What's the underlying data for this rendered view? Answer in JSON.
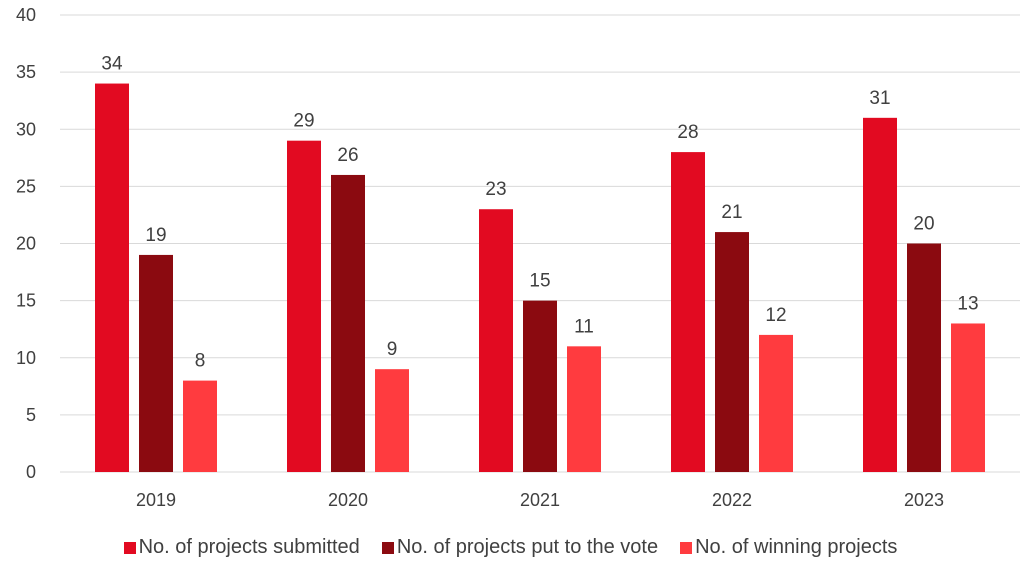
{
  "chart_data": {
    "type": "bar",
    "title": "",
    "xlabel": "",
    "ylabel": "",
    "categories": [
      "2019",
      "2020",
      "2021",
      "2022",
      "2023"
    ],
    "series": [
      {
        "name": "No. of projects submitted",
        "values": [
          34,
          29,
          23,
          28,
          31
        ],
        "color": "#e20a21"
      },
      {
        "name": "No. of projects put to the vote",
        "values": [
          19,
          26,
          15,
          21,
          20
        ],
        "color": "#8b0a10"
      },
      {
        "name": "No. of winning projects",
        "values": [
          8,
          9,
          11,
          12,
          13
        ],
        "color": "#ff3b3f"
      }
    ],
    "ylim": [
      0,
      40
    ],
    "yticks": [
      0,
      5,
      10,
      15,
      20,
      25,
      30,
      35,
      40
    ],
    "grid": true,
    "legend_position": "bottom",
    "data_labels": true
  }
}
